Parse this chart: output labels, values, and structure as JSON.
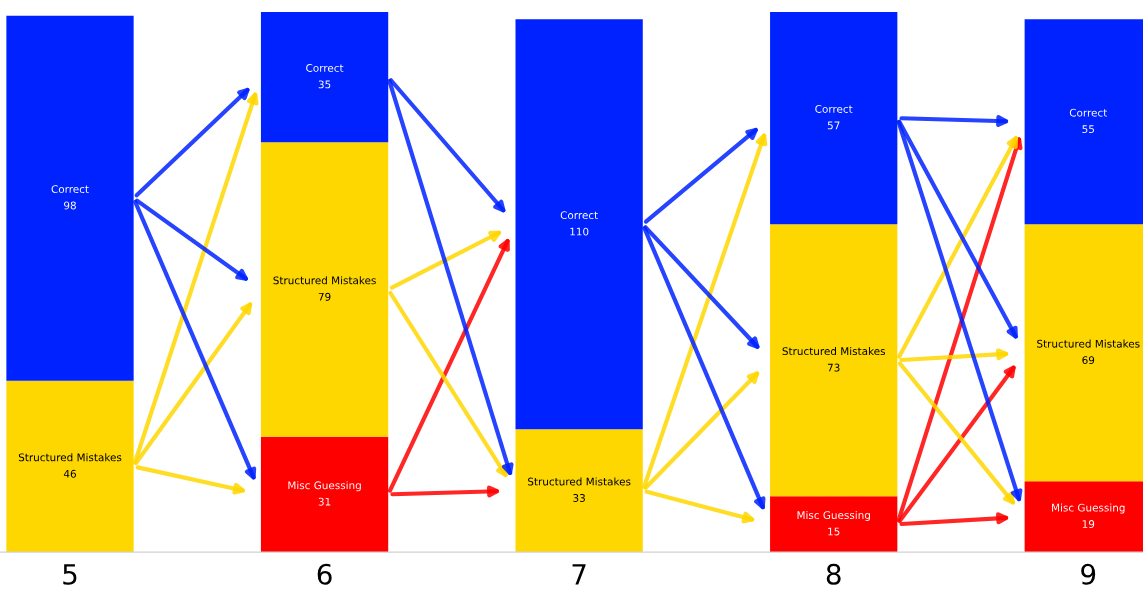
{
  "chart_data": {
    "type": "bar",
    "stacked": true,
    "categories": [
      "5",
      "6",
      "7",
      "8",
      "9"
    ],
    "series": [
      {
        "name": "Misc Guessing",
        "color": "#ff0000",
        "values": [
          null,
          31,
          null,
          15,
          19
        ]
      },
      {
        "name": "Structured Mistakes",
        "color": "#ffd700",
        "values": [
          46,
          79,
          33,
          73,
          69
        ]
      },
      {
        "name": "Correct",
        "color": "#0022ff",
        "values": [
          98,
          35,
          110,
          57,
          55
        ]
      }
    ],
    "data_labels": true,
    "tick_labels": "x",
    "grid": false,
    "legend": false
  }
}
